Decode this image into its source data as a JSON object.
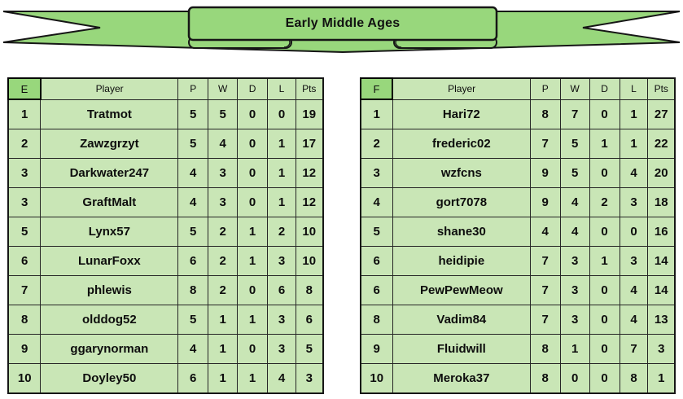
{
  "banner": {
    "title": "Early Middle Ages"
  },
  "colors": {
    "ribbon_green": "#98d77c",
    "cell_green": "#c9e6b6",
    "winner_green": "#a9d18e",
    "pale_green": "#e4f2dc",
    "outline": "#161616"
  },
  "tables": [
    {
      "group": "E",
      "columns": [
        "Player",
        "P",
        "W",
        "D",
        "L",
        "Pts"
      ],
      "rows": [
        {
          "rank": "1",
          "player": "Tratmot",
          "p": "5",
          "w": "5",
          "d": "0",
          "l": "0",
          "pts": "19",
          "highlight": "winner"
        },
        {
          "rank": "2",
          "player": "Zawzgrzyt",
          "p": "5",
          "w": "4",
          "d": "0",
          "l": "1",
          "pts": "17",
          "highlight": "none"
        },
        {
          "rank": "3",
          "player": "Darkwater247",
          "p": "4",
          "w": "3",
          "d": "0",
          "l": "1",
          "pts": "12",
          "highlight": "none"
        },
        {
          "rank": "3",
          "player": "GraftMalt",
          "p": "4",
          "w": "3",
          "d": "0",
          "l": "1",
          "pts": "12",
          "highlight": "none"
        },
        {
          "rank": "5",
          "player": "Lynx57",
          "p": "5",
          "w": "2",
          "d": "1",
          "l": "2",
          "pts": "10",
          "highlight": "none"
        },
        {
          "rank": "6",
          "player": "LunarFoxx",
          "p": "6",
          "w": "2",
          "d": "1",
          "l": "3",
          "pts": "10",
          "highlight": "none"
        },
        {
          "rank": "7",
          "player": "phlewis",
          "p": "8",
          "w": "2",
          "d": "0",
          "l": "6",
          "pts": "8",
          "highlight": "none"
        },
        {
          "rank": "8",
          "player": "olddog52",
          "p": "5",
          "w": "1",
          "d": "1",
          "l": "3",
          "pts": "6",
          "highlight": "none"
        },
        {
          "rank": "9",
          "player": "ggarynorman",
          "p": "4",
          "w": "1",
          "d": "0",
          "l": "3",
          "pts": "5",
          "highlight": "none"
        },
        {
          "rank": "10",
          "player": "Doyley50",
          "p": "6",
          "w": "1",
          "d": "1",
          "l": "4",
          "pts": "3",
          "highlight": "last"
        }
      ]
    },
    {
      "group": "F",
      "columns": [
        "Player",
        "P",
        "W",
        "D",
        "L",
        "Pts"
      ],
      "rows": [
        {
          "rank": "1",
          "player": "Hari72",
          "p": "8",
          "w": "7",
          "d": "0",
          "l": "1",
          "pts": "27",
          "highlight": "winner"
        },
        {
          "rank": "2",
          "player": "frederic02",
          "p": "7",
          "w": "5",
          "d": "1",
          "l": "1",
          "pts": "22",
          "highlight": "none"
        },
        {
          "rank": "3",
          "player": "wzfcns",
          "p": "9",
          "w": "5",
          "d": "0",
          "l": "4",
          "pts": "20",
          "highlight": "none"
        },
        {
          "rank": "4",
          "player": "gort7078",
          "p": "9",
          "w": "4",
          "d": "2",
          "l": "3",
          "pts": "18",
          "highlight": "none"
        },
        {
          "rank": "5",
          "player": "shane30",
          "p": "4",
          "w": "4",
          "d": "0",
          "l": "0",
          "pts": "16",
          "highlight": "none"
        },
        {
          "rank": "6",
          "player": "heidipie",
          "p": "7",
          "w": "3",
          "d": "1",
          "l": "3",
          "pts": "14",
          "highlight": "none"
        },
        {
          "rank": "6",
          "player": "PewPewMeow",
          "p": "7",
          "w": "3",
          "d": "0",
          "l": "4",
          "pts": "14",
          "highlight": "none"
        },
        {
          "rank": "8",
          "player": "Vadim84",
          "p": "7",
          "w": "3",
          "d": "0",
          "l": "4",
          "pts": "13",
          "highlight": "none"
        },
        {
          "rank": "9",
          "player": "Fluidwill",
          "p": "8",
          "w": "1",
          "d": "0",
          "l": "7",
          "pts": "3",
          "highlight": "none"
        },
        {
          "rank": "10",
          "player": "Meroka37",
          "p": "8",
          "w": "0",
          "d": "0",
          "l": "8",
          "pts": "1",
          "highlight": "none"
        }
      ]
    }
  ]
}
